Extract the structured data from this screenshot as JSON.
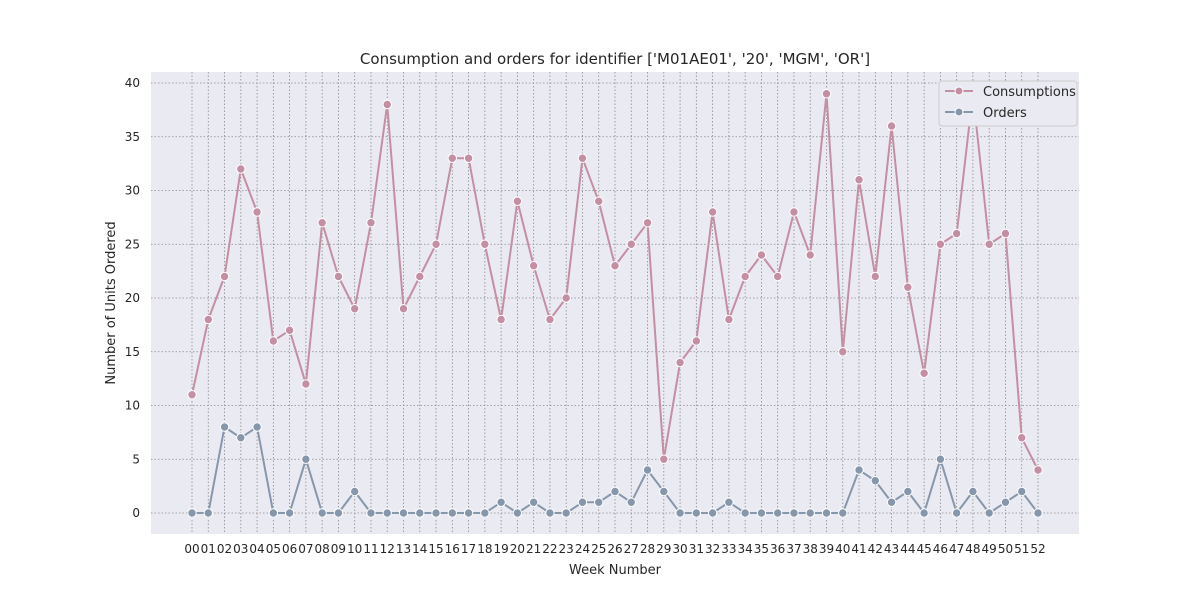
{
  "chart_data": {
    "type": "line",
    "title": "Consumption and orders for identifier ['M01AE01', '20', 'MGM', 'OR']",
    "xlabel": "Week Number",
    "ylabel": "Number of Units Ordered",
    "ylim": [
      -2,
      41
    ],
    "yticks": [
      0,
      5,
      10,
      15,
      20,
      25,
      30,
      35,
      40
    ],
    "grid": true,
    "legend_position": "top-right",
    "categories": [
      "00",
      "01",
      "02",
      "03",
      "04",
      "05",
      "06",
      "07",
      "08",
      "09",
      "10",
      "11",
      "12",
      "13",
      "14",
      "15",
      "16",
      "17",
      "18",
      "19",
      "20",
      "21",
      "22",
      "23",
      "24",
      "25",
      "26",
      "27",
      "28",
      "29",
      "30",
      "31",
      "32",
      "33",
      "34",
      "35",
      "36",
      "37",
      "38",
      "39",
      "40",
      "41",
      "42",
      "43",
      "44",
      "45",
      "46",
      "47",
      "48",
      "49",
      "50",
      "51",
      "52"
    ],
    "series": [
      {
        "name": "Consumptions",
        "color": "#c48ea3",
        "values": [
          11,
          18,
          22,
          32,
          28,
          16,
          17,
          12,
          27,
          22,
          19,
          27,
          38,
          19,
          22,
          25,
          33,
          33,
          25,
          18,
          29,
          23,
          18,
          20,
          33,
          29,
          23,
          25,
          27,
          5,
          14,
          16,
          28,
          18,
          22,
          24,
          22,
          28,
          24,
          39,
          15,
          31,
          22,
          36,
          21,
          13,
          25,
          26,
          39,
          25,
          26,
          7,
          4
        ]
      },
      {
        "name": "Orders",
        "color": "#8797ab",
        "values": [
          0,
          0,
          8,
          7,
          8,
          0,
          0,
          5,
          0,
          0,
          2,
          0,
          0,
          0,
          0,
          0,
          0,
          0,
          0,
          1,
          0,
          1,
          0,
          0,
          1,
          1,
          2,
          1,
          4,
          2,
          0,
          0,
          0,
          1,
          0,
          0,
          0,
          0,
          0,
          0,
          0,
          4,
          3,
          1,
          2,
          0,
          5,
          0,
          2,
          0,
          1,
          2,
          0
        ]
      }
    ]
  }
}
